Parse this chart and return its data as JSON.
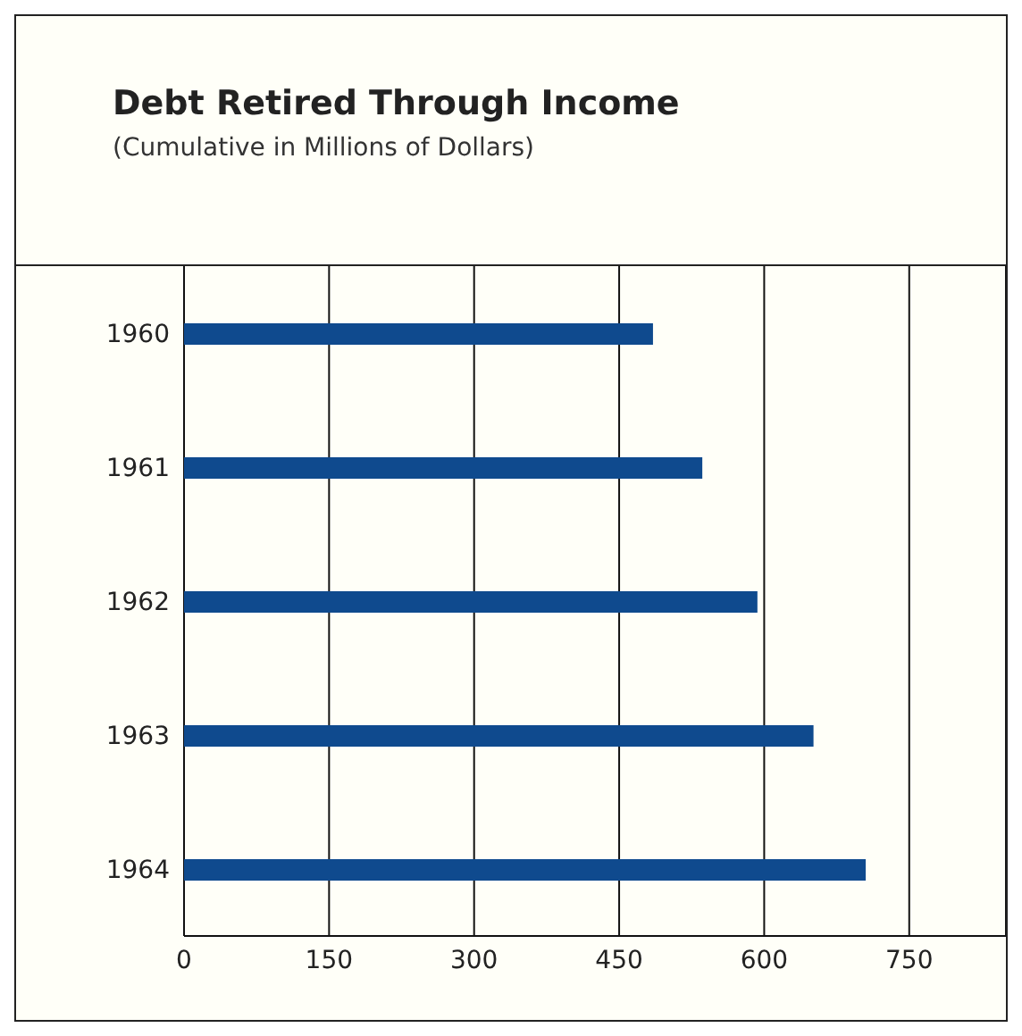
{
  "chart_data": {
    "type": "bar",
    "orientation": "horizontal",
    "title": "Debt Retired Through Income",
    "subtitle": "(Cumulative in Millions of Dollars)",
    "categories": [
      "1960",
      "1961",
      "1962",
      "1963",
      "1964"
    ],
    "values": [
      485,
      536,
      593,
      651,
      705
    ],
    "color": "#0f4a8e",
    "xlim": [
      0,
      850
    ],
    "xticks": [
      0,
      150,
      300,
      450,
      600,
      750
    ],
    "grid": "x"
  }
}
